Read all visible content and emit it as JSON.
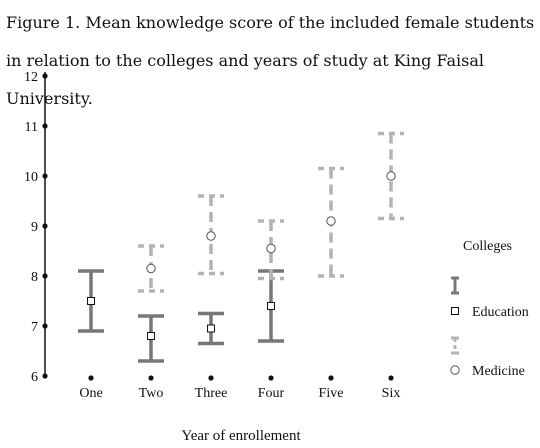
{
  "figure": {
    "title": "Figure 1. Mean knowledge score of the included female students in relation to the colleges and years of study at King Faisal University."
  },
  "chart_data": {
    "type": "errorbar",
    "xlabel": "Year of enrollement",
    "ylabel": "",
    "categories": [
      "One",
      "Two",
      "Three",
      "Four",
      "Five",
      "Six"
    ],
    "ylim": [
      6,
      12
    ],
    "yticks": [
      6,
      7,
      8,
      9,
      10,
      11,
      12
    ],
    "grid": false,
    "legend": {
      "title": "Colleges",
      "placement": "right"
    },
    "series": [
      {
        "name": "Education",
        "color": "#777777",
        "marker": "square",
        "line": "solid",
        "points": [
          {
            "x": "One",
            "mean": 7.5,
            "low": 6.9,
            "high": 8.1
          },
          {
            "x": "Two",
            "mean": 6.8,
            "low": 6.3,
            "high": 7.2
          },
          {
            "x": "Three",
            "mean": 6.95,
            "low": 6.65,
            "high": 7.25
          },
          {
            "x": "Four",
            "mean": 7.4,
            "low": 6.7,
            "high": 8.1
          }
        ]
      },
      {
        "name": "Medicine",
        "color": "#b3b3b3",
        "marker": "circle",
        "line": "dashed",
        "points": [
          {
            "x": "Two",
            "mean": 8.15,
            "low": 7.7,
            "high": 8.6
          },
          {
            "x": "Three",
            "mean": 8.8,
            "low": 8.05,
            "high": 9.6
          },
          {
            "x": "Four",
            "mean": 8.55,
            "low": 7.95,
            "high": 9.1
          },
          {
            "x": "Five",
            "mean": 9.1,
            "low": 8.0,
            "high": 10.15
          },
          {
            "x": "Six",
            "mean": 10.0,
            "low": 9.15,
            "high": 10.85
          }
        ]
      }
    ]
  }
}
